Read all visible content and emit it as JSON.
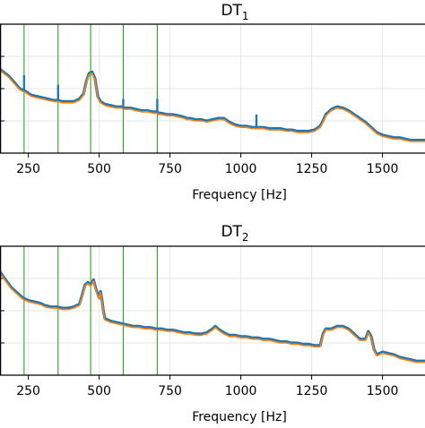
{
  "chart_data": [
    {
      "type": "line",
      "title": "DT",
      "title_subscript": "1",
      "xlabel": "Frequency [Hz]",
      "ylabel": "",
      "xlim": [
        150,
        1650
      ],
      "ylim": [
        0,
        100
      ],
      "x_ticks": [
        250,
        500,
        750,
        1000,
        1250,
        1500
      ],
      "grid": true,
      "vlines": [
        235,
        355,
        470,
        585,
        705
      ],
      "vline_color": "#2ca02c",
      "series": [
        {
          "color": "#1f77b4",
          "x": [
            150,
            180,
            200,
            220,
            240,
            260,
            280,
            300,
            320,
            340,
            355,
            370,
            390,
            410,
            430,
            445,
            455,
            465,
            475,
            485,
            495,
            505,
            520,
            540,
            560,
            580,
            585,
            590,
            610,
            630,
            650,
            670,
            690,
            705,
            710,
            720,
            740,
            760,
            780,
            800,
            810,
            820,
            840,
            860,
            880,
            900,
            920,
            940,
            960,
            980,
            1000,
            1020,
            1040,
            1055,
            1060,
            1080,
            1100,
            1120,
            1140,
            1160,
            1180,
            1200,
            1220,
            1240,
            1260,
            1280,
            1290,
            1300,
            1320,
            1340,
            1360,
            1380,
            1400,
            1420,
            1440,
            1460,
            1480,
            1500,
            1520,
            1540,
            1560,
            1580,
            1600,
            1620,
            1650
          ],
          "y": [
            65,
            60,
            55,
            50,
            48,
            45,
            44,
            43,
            42,
            41,
            41,
            40,
            40,
            40,
            42,
            46,
            56,
            62,
            63,
            58,
            44,
            40,
            38,
            37,
            36,
            36,
            35,
            35,
            35,
            34,
            33,
            33,
            32,
            32,
            31,
            31,
            30,
            30,
            29,
            28,
            27,
            27,
            26,
            26,
            25,
            26,
            27,
            27,
            24,
            22,
            21,
            21,
            20,
            20,
            20,
            20,
            19,
            19,
            19,
            18,
            18,
            17,
            17,
            17,
            18,
            21,
            25,
            30,
            34,
            36,
            35,
            33,
            30,
            27,
            24,
            20,
            16,
            14,
            13,
            12,
            12,
            11,
            10,
            10,
            10
          ]
        },
        {
          "color": "#ff7f0e",
          "x": [
            150,
            180,
            200,
            220,
            240,
            260,
            280,
            300,
            320,
            340,
            355,
            370,
            390,
            410,
            430,
            445,
            455,
            465,
            475,
            485,
            495,
            505,
            520,
            540,
            560,
            580,
            585,
            590,
            610,
            630,
            650,
            670,
            690,
            705,
            710,
            720,
            740,
            760,
            780,
            800,
            810,
            820,
            840,
            860,
            880,
            900,
            920,
            940,
            960,
            980,
            1000,
            1020,
            1040,
            1055,
            1060,
            1080,
            1100,
            1120,
            1140,
            1160,
            1180,
            1200,
            1220,
            1240,
            1260,
            1280,
            1290,
            1300,
            1320,
            1340,
            1360,
            1380,
            1400,
            1420,
            1440,
            1460,
            1480,
            1500,
            1520,
            1540,
            1560,
            1580,
            1600,
            1620,
            1650
          ],
          "y": [
            64,
            59,
            54,
            49,
            47,
            44,
            43,
            42,
            41,
            40,
            40,
            39,
            39,
            39,
            41,
            45,
            55,
            61,
            62,
            57,
            43,
            39,
            37,
            36,
            35,
            35,
            34,
            34,
            34,
            33,
            32,
            32,
            31,
            31,
            30,
            30,
            29,
            29,
            28,
            27,
            26,
            26,
            25,
            25,
            24,
            25,
            26,
            26,
            23,
            21,
            20,
            20,
            19,
            19,
            19,
            19,
            18,
            18,
            18,
            17,
            17,
            16,
            16,
            16,
            17,
            20,
            24,
            29,
            33,
            35,
            34,
            32,
            29,
            26,
            23,
            19,
            15,
            13,
            12,
            11,
            11,
            10,
            9,
            9,
            9
          ]
        }
      ],
      "spikes": [
        {
          "x": 235,
          "height": 12
        },
        {
          "x": 355,
          "height": 12
        },
        {
          "x": 585,
          "height": 7
        },
        {
          "x": 705,
          "height": 10
        },
        {
          "x": 1055,
          "height": 10
        }
      ]
    },
    {
      "type": "line",
      "title": "DT",
      "title_subscript": "2",
      "xlabel": "Frequency [Hz]",
      "ylabel": "",
      "xlim": [
        150,
        1650
      ],
      "ylim": [
        0,
        100
      ],
      "x_ticks": [
        250,
        500,
        750,
        1000,
        1250,
        1500
      ],
      "grid": true,
      "vlines": [
        235,
        355,
        470,
        585,
        705
      ],
      "vline_color": "#2ca02c",
      "series": [
        {
          "color": "#1f77b4",
          "x": [
            150,
            170,
            190,
            210,
            230,
            250,
            270,
            290,
            310,
            330,
            350,
            370,
            390,
            410,
            430,
            440,
            450,
            460,
            470,
            480,
            490,
            500,
            505,
            510,
            515,
            520,
            540,
            560,
            580,
            600,
            620,
            640,
            660,
            680,
            700,
            720,
            740,
            760,
            780,
            800,
            820,
            840,
            860,
            880,
            900,
            910,
            920,
            940,
            960,
            980,
            1000,
            1020,
            1040,
            1060,
            1080,
            1100,
            1120,
            1140,
            1160,
            1180,
            1200,
            1220,
            1240,
            1260,
            1280,
            1290,
            1300,
            1320,
            1340,
            1360,
            1380,
            1400,
            1420,
            1440,
            1450,
            1460,
            1470,
            1480,
            1500,
            1520,
            1540,
            1560,
            1580,
            1600,
            1620,
            1650
          ],
          "y": [
            80,
            74,
            68,
            64,
            60,
            58,
            57,
            56,
            54,
            53,
            53,
            52,
            52,
            53,
            55,
            62,
            70,
            72,
            70,
            74,
            66,
            60,
            65,
            58,
            50,
            44,
            42,
            41,
            40,
            39,
            38,
            38,
            37,
            37,
            36,
            36,
            35,
            35,
            34,
            33,
            33,
            32,
            32,
            33,
            36,
            38,
            36,
            33,
            31,
            31,
            30,
            30,
            29,
            29,
            28,
            28,
            27,
            26,
            26,
            25,
            25,
            24,
            24,
            23,
            23,
            32,
            36,
            36,
            38,
            38,
            36,
            32,
            28,
            28,
            34,
            30,
            20,
            16,
            18,
            17,
            16,
            14,
            13,
            12,
            11,
            11
          ]
        },
        {
          "color": "#ff7f0e",
          "x": [
            150,
            170,
            190,
            210,
            230,
            250,
            270,
            290,
            310,
            330,
            350,
            370,
            390,
            410,
            430,
            440,
            450,
            460,
            470,
            480,
            490,
            500,
            505,
            510,
            515,
            520,
            540,
            560,
            580,
            600,
            620,
            640,
            660,
            680,
            700,
            720,
            740,
            760,
            780,
            800,
            820,
            840,
            860,
            880,
            900,
            910,
            920,
            940,
            960,
            980,
            1000,
            1020,
            1040,
            1060,
            1080,
            1100,
            1120,
            1140,
            1160,
            1180,
            1200,
            1220,
            1240,
            1260,
            1280,
            1290,
            1300,
            1320,
            1340,
            1360,
            1380,
            1400,
            1420,
            1440,
            1450,
            1460,
            1470,
            1480,
            1500,
            1520,
            1540,
            1560,
            1580,
            1600,
            1620,
            1650
          ],
          "y": [
            79,
            73,
            67,
            63,
            59,
            57,
            56,
            55,
            53,
            52,
            52,
            51,
            51,
            52,
            54,
            61,
            69,
            71,
            69,
            73,
            65,
            59,
            64,
            57,
            49,
            43,
            41,
            40,
            39,
            38,
            37,
            37,
            36,
            36,
            35,
            35,
            34,
            34,
            33,
            32,
            32,
            31,
            31,
            32,
            35,
            37,
            35,
            32,
            30,
            30,
            29,
            29,
            28,
            28,
            27,
            27,
            26,
            25,
            25,
            24,
            24,
            23,
            23,
            22,
            22,
            31,
            35,
            35,
            37,
            37,
            35,
            31,
            27,
            27,
            33,
            29,
            19,
            15,
            17,
            16,
            15,
            13,
            12,
            11,
            10,
            10
          ]
        }
      ],
      "spikes": []
    }
  ]
}
